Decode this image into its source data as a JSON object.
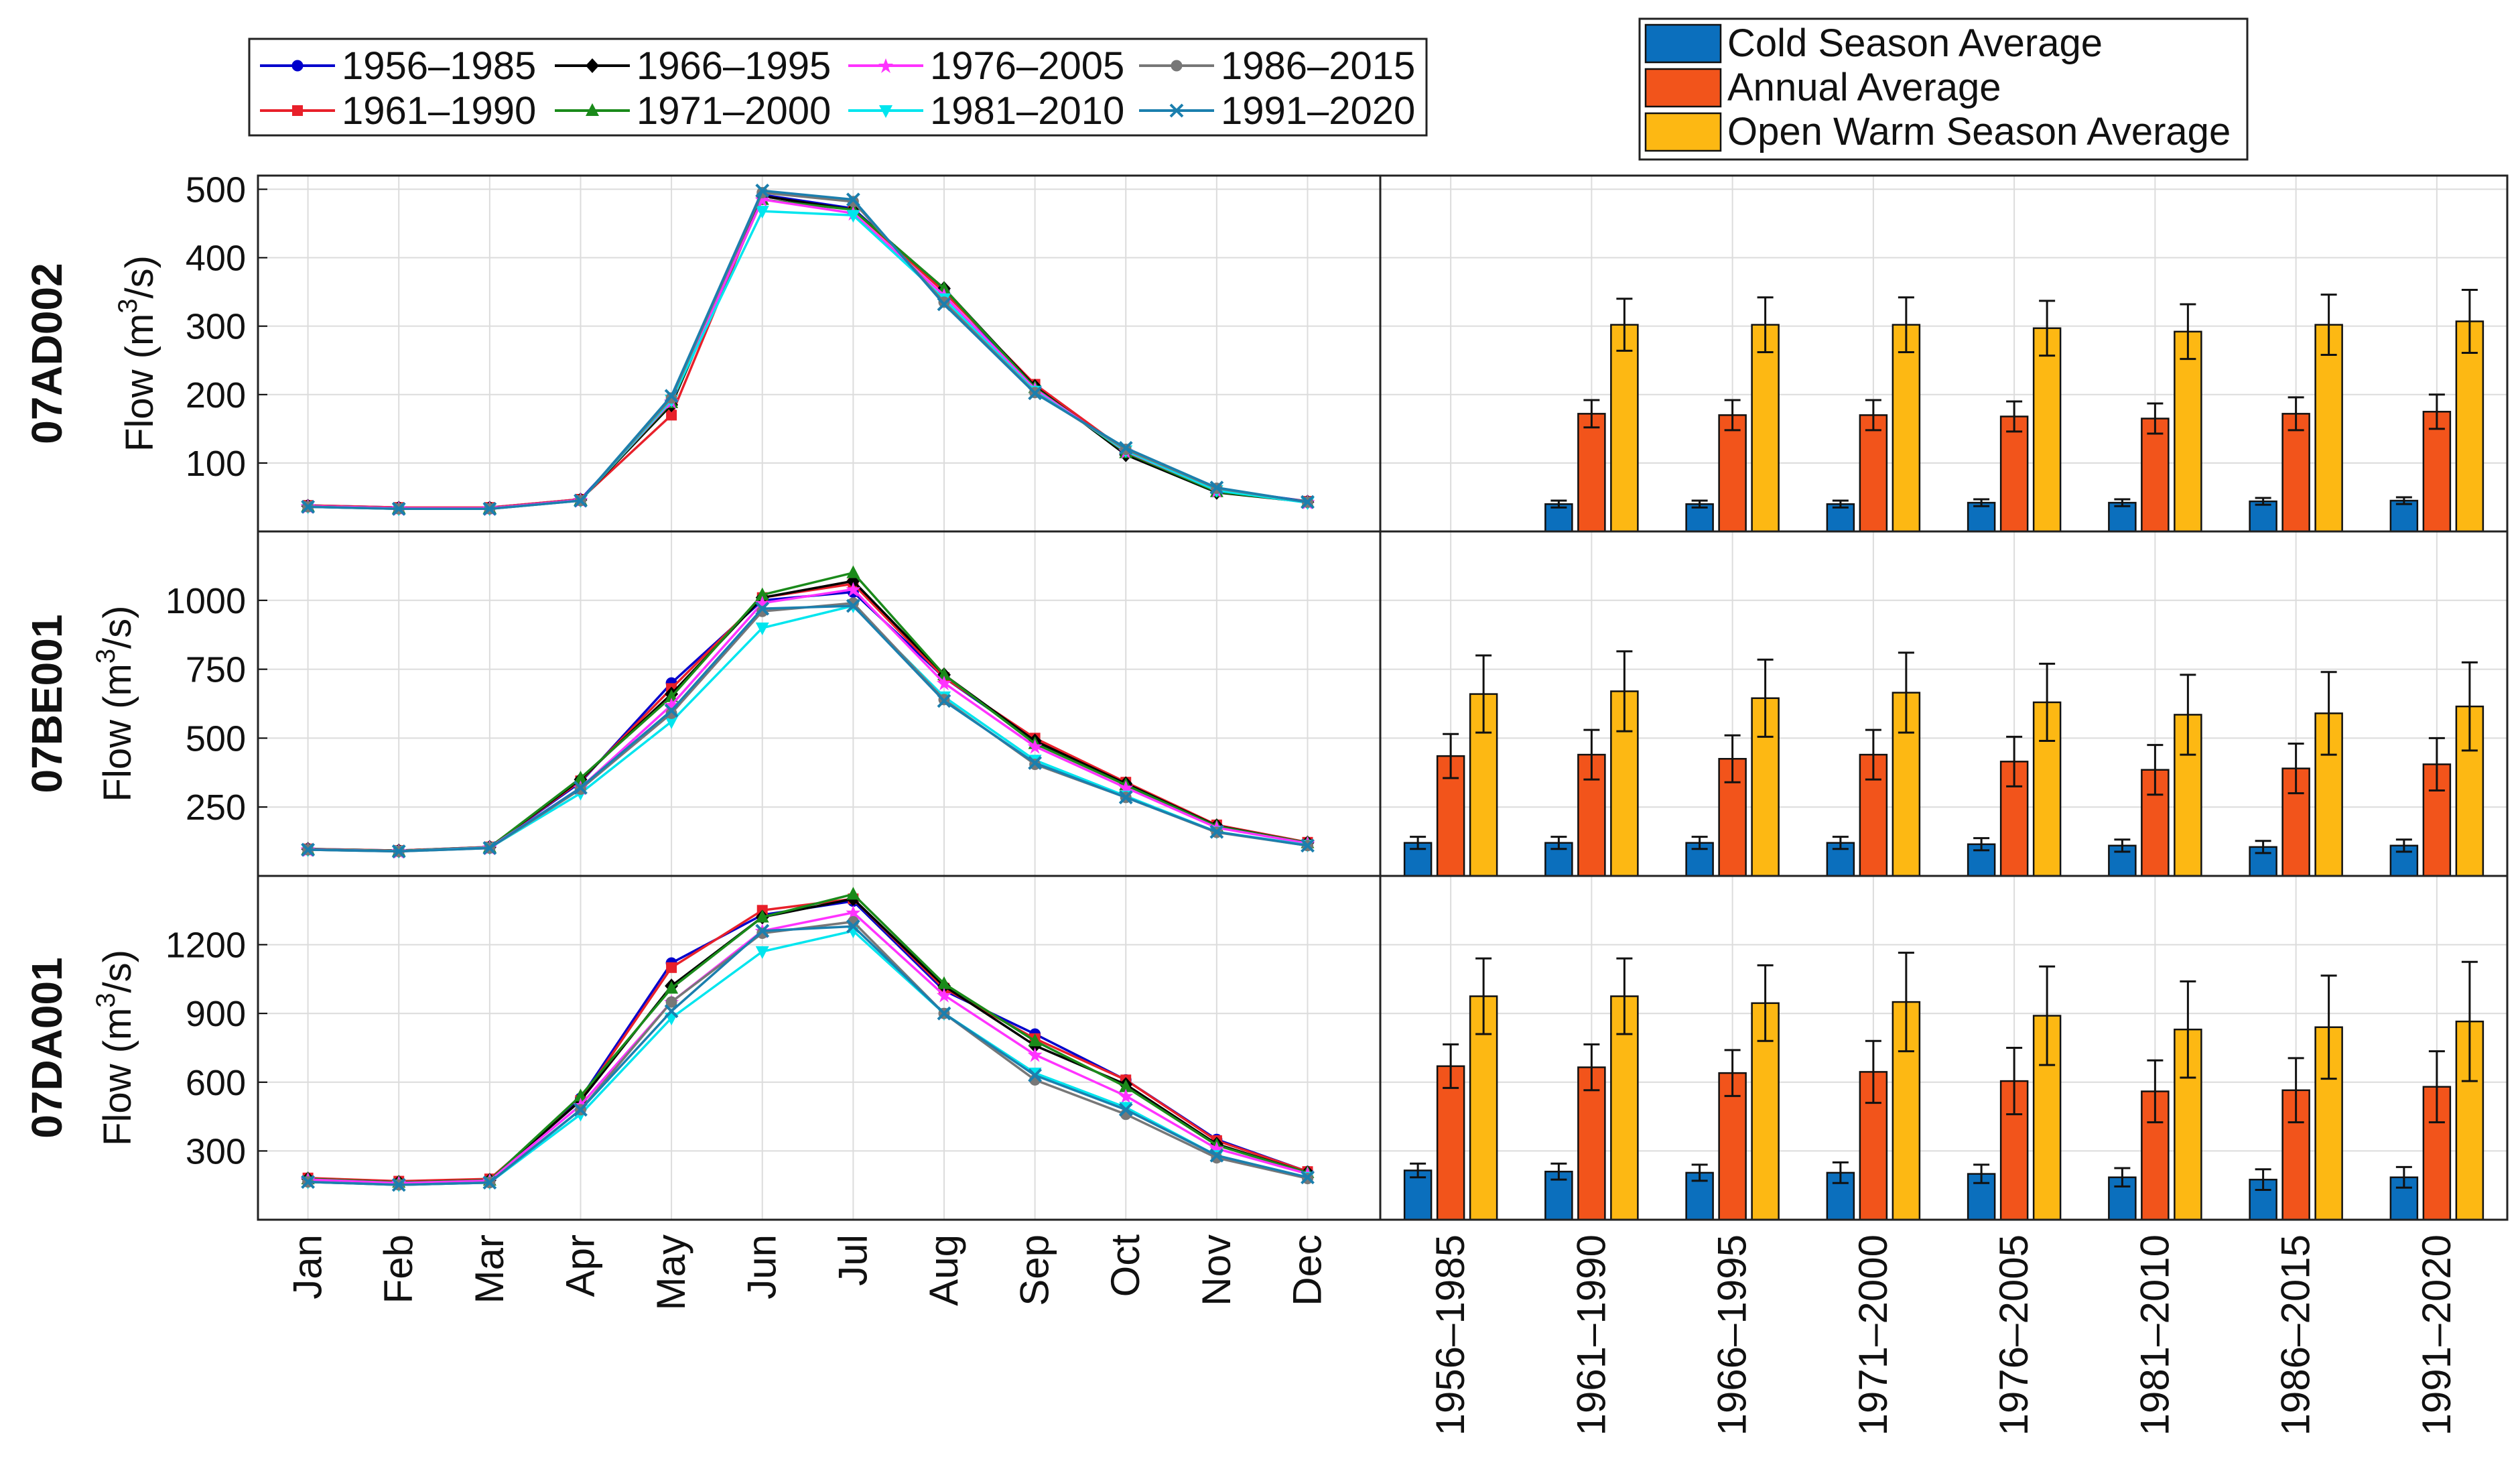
{
  "figure": {
    "rows": [
      {
        "station": "07AD002",
        "ylabel": "Flow (m",
        "ylabel_sup": "3",
        "ylabel_end": "/s)"
      },
      {
        "station": "07BE001",
        "ylabel": "Flow (m",
        "ylabel_sup": "3",
        "ylabel_end": "/s)"
      },
      {
        "station": "07DA001",
        "ylabel": "Flow (m",
        "ylabel_sup": "3",
        "ylabel_end": "/s)"
      }
    ]
  },
  "chart_data": [
    {
      "type": "line",
      "panel": "monthly-hydrograph",
      "station": "07AD002",
      "categories": [
        "Jan",
        "Feb",
        "Mar",
        "Apr",
        "May",
        "Jun",
        "Jul",
        "Aug",
        "Sep",
        "Oct",
        "Nov",
        "Dec"
      ],
      "ylim": [
        0,
        520
      ],
      "yticks": [
        100,
        200,
        300,
        400,
        500
      ],
      "grid": true,
      "series": [
        {
          "name": "1956–1985",
          "values": [
            38,
            35,
            35,
            47,
            190,
            492,
            472,
            352,
            210,
            118,
            62,
            44
          ]
        },
        {
          "name": "1961–1990",
          "values": [
            38,
            35,
            35,
            47,
            170,
            490,
            470,
            350,
            215,
            118,
            60,
            44
          ]
        },
        {
          "name": "1966–1995",
          "values": [
            37,
            34,
            34,
            46,
            185,
            490,
            470,
            355,
            212,
            112,
            57,
            43
          ]
        },
        {
          "name": "1971–2000",
          "values": [
            37,
            34,
            34,
            46,
            188,
            485,
            470,
            355,
            210,
            115,
            58,
            43
          ]
        },
        {
          "name": "1976–2005",
          "values": [
            37,
            34,
            34,
            46,
            190,
            485,
            465,
            345,
            208,
            117,
            60,
            43
          ]
        },
        {
          "name": "1981–2010",
          "values": [
            36,
            33,
            33,
            45,
            192,
            468,
            462,
            340,
            205,
            118,
            60,
            42
          ]
        },
        {
          "name": "1986–2015",
          "values": [
            36,
            33,
            33,
            45,
            195,
            495,
            482,
            335,
            203,
            120,
            63,
            43
          ]
        },
        {
          "name": "1991–2020",
          "values": [
            36,
            33,
            33,
            45,
            198,
            498,
            485,
            332,
            202,
            122,
            64,
            43
          ]
        }
      ]
    },
    {
      "type": "bar",
      "panel": "seasonal-averages",
      "station": "07AD002",
      "categories": [
        "1956–1985",
        "1961–1990",
        "1966–1995",
        "1971–2000",
        "1976–2005",
        "1981–2010",
        "1986–2015",
        "1991–2020"
      ],
      "ylim": [
        0,
        520
      ],
      "grid": true,
      "series": [
        {
          "name": "Cold Season Average",
          "values": [
            null,
            40,
            40,
            40,
            42,
            42,
            44,
            45
          ],
          "errors": [
            null,
            5,
            5,
            5,
            5,
            5,
            5,
            5
          ]
        },
        {
          "name": "Annual Average",
          "values": [
            null,
            172,
            170,
            170,
            168,
            165,
            172,
            175
          ],
          "errors": [
            null,
            20,
            22,
            22,
            22,
            22,
            24,
            25
          ]
        },
        {
          "name": "Open Warm Season Average",
          "values": [
            null,
            302,
            302,
            302,
            297,
            292,
            302,
            307
          ],
          "errors": [
            null,
            38,
            40,
            40,
            40,
            40,
            44,
            46
          ]
        }
      ]
    },
    {
      "type": "line",
      "panel": "monthly-hydrograph",
      "station": "07BE001",
      "categories": [
        "Jan",
        "Feb",
        "Mar",
        "Apr",
        "May",
        "Jun",
        "Jul",
        "Aug",
        "Sep",
        "Oct",
        "Nov",
        "Dec"
      ],
      "ylim": [
        0,
        1250
      ],
      "yticks": [
        250,
        500,
        750,
        1000
      ],
      "grid": true,
      "series": [
        {
          "name": "1956–1985",
          "values": [
            98,
            92,
            105,
            340,
            700,
            1000,
            1030,
            720,
            490,
            330,
            180,
            120
          ]
        },
        {
          "name": "1961–1990",
          "values": [
            98,
            92,
            105,
            345,
            680,
            1010,
            1060,
            720,
            500,
            340,
            185,
            122
          ]
        },
        {
          "name": "1966–1995",
          "values": [
            97,
            91,
            104,
            350,
            660,
            1010,
            1070,
            730,
            490,
            335,
            182,
            120
          ]
        },
        {
          "name": "1971–2000",
          "values": [
            97,
            91,
            104,
            355,
            650,
            1020,
            1100,
            730,
            480,
            330,
            180,
            120
          ]
        },
        {
          "name": "1976–2005",
          "values": [
            96,
            90,
            103,
            320,
            620,
            990,
            1040,
            700,
            470,
            320,
            175,
            118
          ]
        },
        {
          "name": "1981–2010",
          "values": [
            95,
            90,
            102,
            300,
            560,
            900,
            980,
            650,
            420,
            290,
            160,
            112
          ]
        },
        {
          "name": "1986–2015",
          "values": [
            95,
            89,
            101,
            315,
            590,
            960,
            990,
            640,
            405,
            285,
            158,
            110
          ]
        },
        {
          "name": "1991–2020",
          "values": [
            95,
            89,
            101,
            320,
            600,
            970,
            980,
            635,
            410,
            285,
            160,
            110
          ]
        }
      ]
    },
    {
      "type": "bar",
      "panel": "seasonal-averages",
      "station": "07BE001",
      "categories": [
        "1956–1985",
        "1961–1990",
        "1966–1995",
        "1971–2000",
        "1976–2005",
        "1981–2010",
        "1986–2015",
        "1991–2020"
      ],
      "ylim": [
        0,
        1250
      ],
      "grid": true,
      "series": [
        {
          "name": "Cold Season Average",
          "values": [
            120,
            120,
            120,
            120,
            115,
            110,
            105,
            110
          ],
          "errors": [
            22,
            22,
            22,
            22,
            22,
            22,
            22,
            22
          ]
        },
        {
          "name": "Annual Average",
          "values": [
            435,
            440,
            425,
            440,
            415,
            385,
            390,
            405
          ],
          "errors": [
            80,
            90,
            85,
            90,
            90,
            90,
            90,
            95
          ]
        },
        {
          "name": "Open Warm Season Average",
          "values": [
            660,
            670,
            645,
            665,
            630,
            585,
            590,
            615
          ],
          "errors": [
            140,
            145,
            140,
            145,
            140,
            145,
            150,
            160
          ]
        }
      ]
    },
    {
      "type": "line",
      "panel": "monthly-hydrograph",
      "station": "07DA001",
      "categories": [
        "Jan",
        "Feb",
        "Mar",
        "Apr",
        "May",
        "Jun",
        "Jul",
        "Aug",
        "Sep",
        "Oct",
        "Nov",
        "Dec"
      ],
      "ylim": [
        0,
        1500
      ],
      "yticks": [
        300,
        600,
        900,
        1200
      ],
      "grid": true,
      "series": [
        {
          "name": "1956–1985",
          "values": [
            180,
            165,
            175,
            530,
            1120,
            1330,
            1390,
            1000,
            810,
            610,
            350,
            210
          ]
        },
        {
          "name": "1961–1990",
          "values": [
            182,
            168,
            178,
            520,
            1100,
            1350,
            1400,
            1010,
            790,
            610,
            345,
            210
          ]
        },
        {
          "name": "1966–1995",
          "values": [
            178,
            163,
            172,
            520,
            1020,
            1320,
            1400,
            1020,
            760,
            590,
            330,
            205
          ]
        },
        {
          "name": "1971–2000",
          "values": [
            178,
            163,
            172,
            540,
            1010,
            1320,
            1420,
            1030,
            780,
            580,
            325,
            205
          ]
        },
        {
          "name": "1976–2005",
          "values": [
            175,
            160,
            170,
            500,
            950,
            1260,
            1340,
            980,
            720,
            540,
            310,
            200
          ]
        },
        {
          "name": "1981–2010",
          "values": [
            165,
            152,
            162,
            460,
            880,
            1170,
            1260,
            900,
            640,
            490,
            280,
            185
          ]
        },
        {
          "name": "1986–2015",
          "values": [
            165,
            152,
            162,
            480,
            950,
            1250,
            1300,
            900,
            610,
            460,
            270,
            180
          ]
        },
        {
          "name": "1991–2020",
          "values": [
            165,
            152,
            162,
            480,
            910,
            1260,
            1280,
            900,
            630,
            480,
            280,
            185
          ]
        }
      ]
    },
    {
      "type": "bar",
      "panel": "seasonal-averages",
      "station": "07DA001",
      "categories": [
        "1956–1985",
        "1961–1990",
        "1966–1995",
        "1971–2000",
        "1976–2005",
        "1981–2010",
        "1986–2015",
        "1991–2020"
      ],
      "ylim": [
        0,
        1500
      ],
      "grid": true,
      "series": [
        {
          "name": "Cold Season Average",
          "values": [
            215,
            210,
            205,
            205,
            200,
            185,
            175,
            185
          ],
          "errors": [
            30,
            35,
            35,
            45,
            40,
            40,
            45,
            45
          ]
        },
        {
          "name": "Annual Average",
          "values": [
            670,
            665,
            640,
            645,
            605,
            560,
            565,
            580
          ],
          "errors": [
            95,
            100,
            100,
            135,
            145,
            135,
            140,
            155
          ]
        },
        {
          "name": "Open Warm Season Average",
          "values": [
            975,
            975,
            945,
            950,
            890,
            830,
            840,
            865
          ],
          "errors": [
            165,
            165,
            165,
            215,
            215,
            210,
            225,
            260
          ]
        }
      ]
    }
  ],
  "legend_lines": {
    "items": [
      {
        "label": "1956–1985",
        "color": "#0000cc",
        "marker": "circle"
      },
      {
        "label": "1961–1990",
        "color": "#e8202a",
        "marker": "square"
      },
      {
        "label": "1966–1995",
        "color": "#000000",
        "marker": "diamond"
      },
      {
        "label": "1971–2000",
        "color": "#1a8a1a",
        "marker": "triangle-up"
      },
      {
        "label": "1976–2005",
        "color": "#ff33ff",
        "marker": "star"
      },
      {
        "label": "1981–2010",
        "color": "#00e5ee",
        "marker": "triangle-down"
      },
      {
        "label": "1986–2015",
        "color": "#777777",
        "marker": "circle"
      },
      {
        "label": "1991–2020",
        "color": "#1b7fae",
        "marker": "x"
      }
    ]
  },
  "legend_bars": {
    "items": [
      {
        "label": "Cold Season Average",
        "color": "#0b6fbd"
      },
      {
        "label": "Annual Average",
        "color": "#f2541b"
      },
      {
        "label": "Open Warm Season Average",
        "color": "#fdb813"
      }
    ]
  }
}
